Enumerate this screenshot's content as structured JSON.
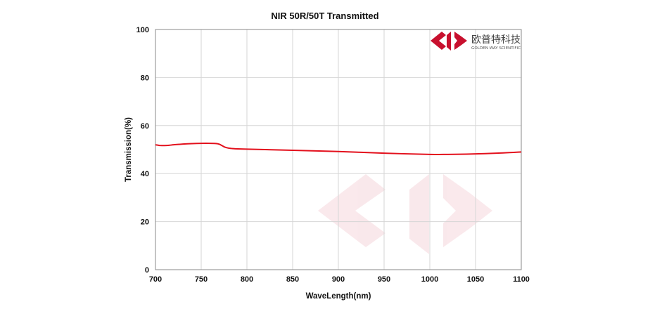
{
  "chart_data": {
    "type": "line",
    "title": "NIR 50R/50T Transmitted",
    "xlabel": "WaveLength(nm)",
    "ylabel": "Transmission(%)",
    "xlim": [
      700,
      1100
    ],
    "ylim": [
      0,
      100
    ],
    "xticks": [
      700,
      750,
      800,
      850,
      900,
      950,
      1000,
      1050,
      1100
    ],
    "yticks": [
      0,
      20,
      40,
      60,
      80,
      100
    ],
    "grid": true,
    "legend": "none",
    "series": [
      {
        "color": "#e3101c",
        "x": [
          700,
          705,
          710,
          715,
          720,
          730,
          740,
          750,
          760,
          767,
          770,
          773,
          776,
          780,
          785,
          790,
          800,
          820,
          850,
          900,
          950,
          1000,
          1020,
          1050,
          1080,
          1100
        ],
        "y": [
          52.0,
          51.7,
          51.7,
          51.8,
          52.0,
          52.3,
          52.5,
          52.6,
          52.6,
          52.5,
          52.2,
          51.6,
          51.0,
          50.6,
          50.4,
          50.3,
          50.2,
          50.0,
          49.7,
          49.2,
          48.5,
          48.0,
          48.0,
          48.2,
          48.6,
          49.0
        ]
      }
    ]
  },
  "logo": {
    "name_cn": "欧普特科技",
    "name_en": "GOLDEN WAY SCIENTIFIC",
    "color": "#c8102e"
  }
}
